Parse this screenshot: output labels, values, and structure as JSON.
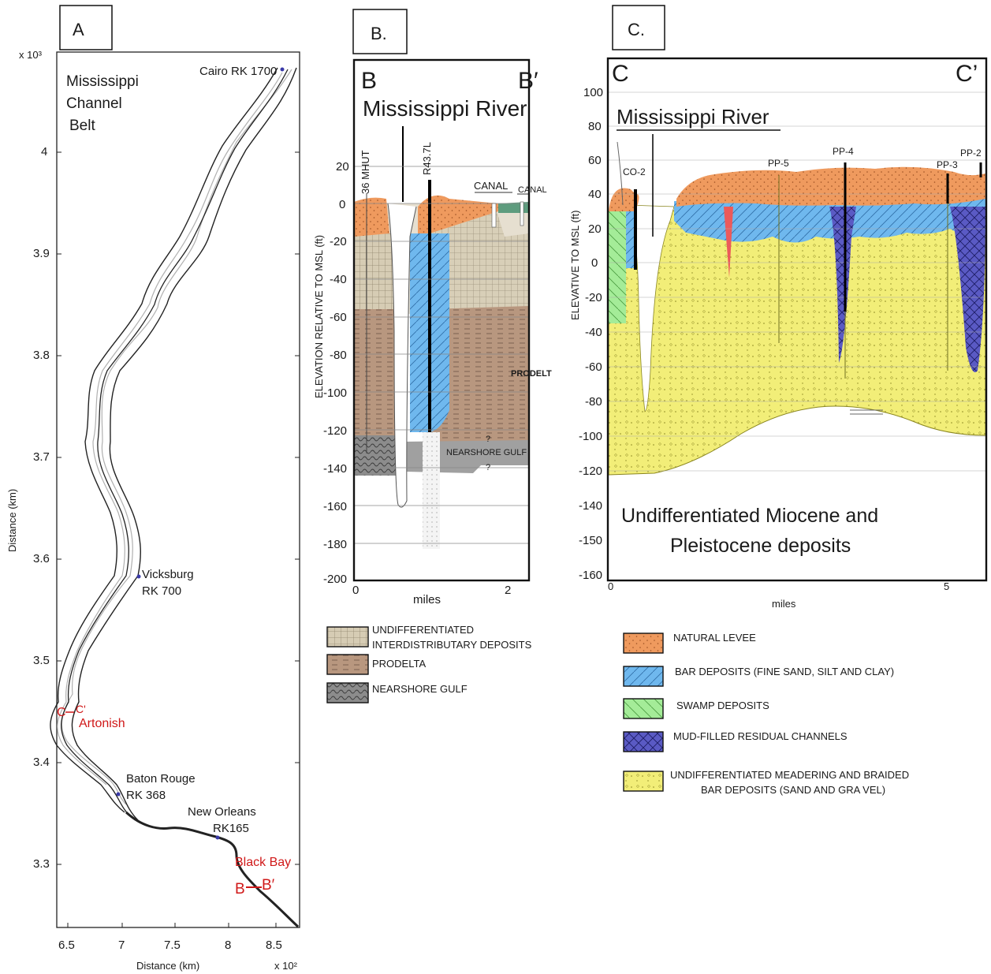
{
  "panel_a": {
    "letter": "A",
    "title_lines": [
      "Mississippi",
      "Channel",
      "Belt"
    ],
    "y_multiplier": "x 10³",
    "x_multiplier": "x 10²",
    "ylabel": "Distance (km)",
    "xlabel": "Distance (km)",
    "y_ticks": [
      "4",
      "3.9",
      "3.8",
      "3.7",
      "3.6",
      "3.5",
      "3.4",
      "3.3"
    ],
    "x_ticks": [
      "6.5",
      "7",
      "7.5",
      "8",
      "8.5"
    ],
    "places": [
      {
        "name": "Cairo RK 1700"
      },
      {
        "name": "Vicksburg",
        "sub": "RK 700"
      },
      {
        "name": "Baton Rouge",
        "sub": "RK 368"
      },
      {
        "name": "New Orleans",
        "sub": "RK165"
      }
    ],
    "red_labels": {
      "artonish": "Artonish",
      "black_bay": "Black Bay",
      "c": "C",
      "c_prime": "C'",
      "b": "B",
      "b_prime": "B′"
    },
    "colors": {
      "river": "#222222",
      "pale_channel": "#b0b0b0",
      "marker": "#3a3aa8",
      "red": "#d01818"
    }
  },
  "panel_b": {
    "letter": "B.",
    "left_end": "B",
    "right_end": "B′",
    "title": "Mississippi River",
    "ylabel": "ELEVATION RELATIVE TO  MSL (ft)",
    "xlabel": "miles",
    "y_ticks": [
      "20",
      "0",
      "-20",
      "-40",
      "-60",
      "-80",
      "-100",
      "-120",
      "-140",
      "-160",
      "-180",
      "-200"
    ],
    "x_ticks": [
      "0",
      "2"
    ],
    "wells": [
      "36 MHUT",
      "R43.7L"
    ],
    "labels": {
      "canal1": "CANAL",
      "canal2": "CANAL",
      "prodelta": "PRODELT",
      "nearshore": "NEARSHORE GULF",
      "q": "?"
    },
    "legend": [
      {
        "lines": [
          "UNDIFFERENTIATED",
          "INTERDISTRIBUTARY DEPOSITS"
        ],
        "color": "#c8bca0"
      },
      {
        "lines": [
          "PRODELTA"
        ],
        "color": "#b8977f"
      },
      {
        "lines": [
          "NEARSHORE GULF"
        ],
        "color": "#8c8c8c"
      }
    ]
  },
  "panel_c": {
    "letter": "C.",
    "left_end": "C",
    "right_end": "C’",
    "title": "Mississippi River",
    "ylabel": "ELEVATIVE TO  MSL (ft)",
    "xlabel": "miles",
    "y_ticks": [
      "100",
      "80",
      "60",
      "40",
      "20",
      "0",
      "-20",
      "-40",
      "-60",
      "-80",
      "-100",
      "-120",
      "-140",
      "-150",
      "-160"
    ],
    "x_ticks": [
      "0",
      "5"
    ],
    "wells": [
      "CO-2",
      "PP-5",
      "PP-4",
      "PP-3",
      "PP-2"
    ],
    "body_text": [
      "Undifferentiated Miocene and",
      "Pleistocene deposits"
    ],
    "legend": [
      {
        "lines": [
          "NATURAL LEVEE"
        ],
        "color": "#ef9a5e"
      },
      {
        "lines": [
          "BAR DEPOSITS (FINE SAND, SILT AND CLAY)"
        ],
        "color": "#6fb8ee"
      },
      {
        "lines": [
          "SWAMP DEPOSITS"
        ],
        "color": "#a4ec98"
      },
      {
        "lines": [
          "MUD-FILLED RESIDUAL CHANNELS"
        ],
        "color": "#5a5ac4"
      },
      {
        "lines": [
          "UNDIFFERENTIATED MEADERING AND BRAIDED",
          "BAR DEPOSITS (SAND AND GRA VEL)"
        ],
        "color": "#f2ee78"
      }
    ]
  }
}
